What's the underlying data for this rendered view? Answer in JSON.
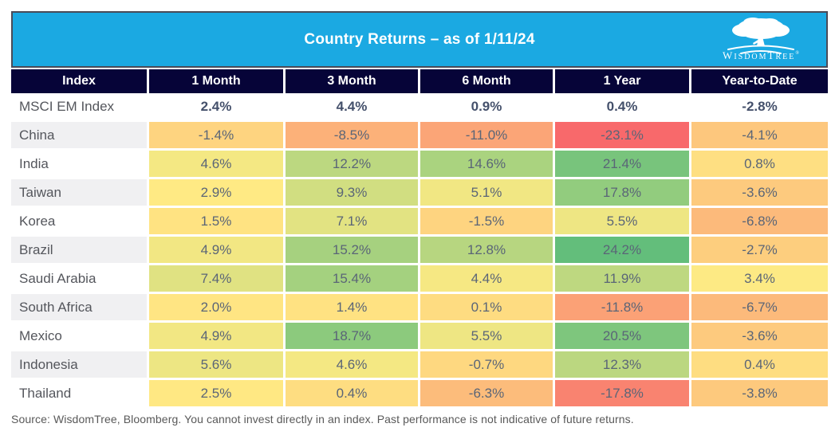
{
  "banner": {
    "title": "Country Returns – as of 1/11/24",
    "bg_color": "#1BA9E2",
    "border_color": "#4a4b58",
    "logo": {
      "brand": "WisdomTree",
      "wordmark_parts": {
        "w": "W",
        "isdom": "ISDOM",
        "t": "T",
        "ree": "REE"
      },
      "registered": "®",
      "icon": "tree-icon"
    }
  },
  "chart_data": {
    "type": "heatmap",
    "title": "Country Returns – as of 1/11/24",
    "columns": [
      "Index",
      "1 Month",
      "3 Month",
      "6 Month",
      "1 Year",
      "Year-to-Date"
    ],
    "rows": [
      {
        "label": "MSCI EM Index",
        "values": [
          2.4,
          4.4,
          0.9,
          0.4,
          -2.8
        ],
        "heatmap": false
      },
      {
        "label": "China",
        "values": [
          -1.4,
          -8.5,
          -11.0,
          -23.1,
          -4.1
        ],
        "heatmap": true
      },
      {
        "label": "India",
        "values": [
          4.6,
          12.2,
          14.6,
          21.4,
          0.8
        ],
        "heatmap": true
      },
      {
        "label": "Taiwan",
        "values": [
          2.9,
          9.3,
          5.1,
          17.8,
          -3.6
        ],
        "heatmap": true
      },
      {
        "label": "Korea",
        "values": [
          1.5,
          7.1,
          -1.5,
          5.5,
          -6.8
        ],
        "heatmap": true
      },
      {
        "label": "Brazil",
        "values": [
          4.9,
          15.2,
          12.8,
          24.2,
          -2.7
        ],
        "heatmap": true
      },
      {
        "label": "Saudi Arabia",
        "values": [
          7.4,
          15.4,
          4.4,
          11.9,
          3.4
        ],
        "heatmap": true
      },
      {
        "label": "South Africa",
        "values": [
          2.0,
          1.4,
          0.1,
          -11.8,
          -6.7
        ],
        "heatmap": true
      },
      {
        "label": "Mexico",
        "values": [
          4.9,
          18.7,
          5.5,
          20.5,
          -3.6
        ],
        "heatmap": true
      },
      {
        "label": "Indonesia",
        "values": [
          5.6,
          4.6,
          -0.7,
          12.3,
          0.4
        ],
        "heatmap": true
      },
      {
        "label": "Thailand",
        "values": [
          2.5,
          0.4,
          -6.3,
          -17.8,
          -3.8
        ],
        "heatmap": true
      }
    ],
    "value_format": "percent_one_decimal",
    "color_scale": {
      "min_value": -23.1,
      "mid_value": 3.15,
      "max_value": 24.2,
      "min_color": "#F8696B",
      "mid_color": "#FFEB84",
      "max_color": "#63BE7B"
    },
    "header_bg": "#060438",
    "header_text_color": "#FFFFFF",
    "label_alt_bg": "#F0F0F2",
    "legend_position": "none",
    "grid": false
  },
  "footer": {
    "source": "Source: WisdomTree, Bloomberg. You cannot invest directly in an index. Past performance is not indicative of future returns."
  }
}
